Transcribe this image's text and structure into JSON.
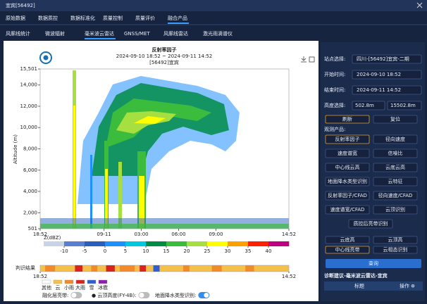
{
  "window": {
    "title": "宜宾[56492]"
  },
  "tabs": [
    {
      "label": "原始数据",
      "active": false
    },
    {
      "label": "数据质控",
      "active": false
    },
    {
      "label": "数据标准化",
      "active": false
    },
    {
      "label": "质量控制",
      "active": false
    },
    {
      "label": "质量评价",
      "active": false
    },
    {
      "label": "融合产品",
      "active": true
    }
  ],
  "subtabs": [
    {
      "label": "风廓线统计",
      "active": false
    },
    {
      "label": "微波辐射",
      "active": false
    },
    {
      "label": "毫米波云雷达",
      "active": true
    },
    {
      "label": "GNSS/MET",
      "active": false
    },
    {
      "label": "风廓线雷达",
      "active": false
    },
    {
      "label": "激光雨滴谱仪",
      "active": false
    }
  ],
  "chart_data": {
    "type": "heatmap",
    "title": "反射率因子",
    "subtitle": "2024-09-10 18:52 ~ 2024-09-11 14:52",
    "station": "[56492]宜宾",
    "y_label": "Altitude (m)",
    "xlim": [
      0,
      20
    ],
    "xticks": [
      {
        "value": 0,
        "label": "18:52"
      },
      {
        "value": 5.133,
        "label": "09-11"
      },
      {
        "value": 8.133,
        "label": "03:00"
      },
      {
        "value": 11.133,
        "label": "06:00"
      },
      {
        "value": 14.133,
        "label": "09:00"
      },
      {
        "value": 20,
        "label": "14:52"
      }
    ],
    "ylim": [
      501,
      15501
    ],
    "yticks": [
      501,
      {
        "value": 2000,
        "label": "2,000"
      },
      {
        "value": 4000,
        "label": "4,000"
      },
      {
        "value": 6000,
        "label": "6,000"
      },
      {
        "value": 8000,
        "label": "8,000"
      },
      {
        "value": 10000,
        "label": "10,000"
      },
      {
        "value": 12000,
        "label": "12,000"
      },
      {
        "value": 14000,
        "label": "14,000"
      },
      {
        "value": 15501,
        "label": "15,501"
      }
    ],
    "colorbar": {
      "label": "Z(dBZ)",
      "lim": [
        -15,
        45
      ],
      "ticks": [
        -10,
        -5,
        0,
        5,
        10,
        15,
        20,
        25,
        30,
        35,
        40
      ],
      "colors": [
        "#c8d4e6",
        "#5b7fd0",
        "#2a5fc0",
        "#1e90ff",
        "#00c8e0",
        "#008c46",
        "#3cbc3c",
        "#a6e040",
        "#ffff00",
        "#ffa000",
        "#ff2000",
        "#c00080"
      ]
    },
    "classification": {
      "label": "判识结果",
      "xticks": [
        {
          "value": 0,
          "label": "18:52"
        },
        {
          "value": 20,
          "label": "14:52"
        }
      ],
      "categories": [
        "其他",
        "云",
        "小雨",
        "大雨",
        "雪",
        "冰雹"
      ],
      "colors": [
        "#ffffff",
        "#f5c04a",
        "#f08a2a",
        "#d9231f",
        "#2f5fd0",
        "#8a1fb0"
      ]
    }
  },
  "toggles": [
    {
      "label": "融化层亮带:",
      "on": false
    },
    {
      "label": "● 云顶高度(FY-4B):",
      "on": false
    },
    {
      "label": "地面降水类型识别:",
      "on": true
    }
  ],
  "panel": {
    "station_label": "站点选择:",
    "station": "四川-[56492]宜宾-二期",
    "start_label": "开始时间:",
    "start": "2024-09-10 18:52",
    "end_label": "结束时间:",
    "end": "2024-09-11 14:52",
    "height_label": "高度选择:",
    "height_min": "502.8m",
    "height_max": "15502.8m",
    "actions": [
      {
        "label": "刷新",
        "selected": true
      },
      {
        "label": "复位",
        "selected": false
      }
    ],
    "products_label": "观测产品:",
    "products": [
      {
        "label": "反射率因子",
        "selected": true
      },
      {
        "label": "径向速度",
        "selected": false
      },
      {
        "label": "速度谱宽",
        "selected": false
      },
      {
        "label": "信噪比",
        "selected": false
      },
      {
        "label": "中心线云高",
        "selected": false
      },
      {
        "label": "云底云高",
        "selected": false
      },
      {
        "label": "地面降水类型识别",
        "selected": false
      },
      {
        "label": "云特征",
        "selected": false
      },
      {
        "label": "反射率因子/CFAD",
        "selected": false
      },
      {
        "label": "径向速度/CFAD",
        "selected": false
      },
      {
        "label": "速度谱宽/CFAD",
        "selected": false
      },
      {
        "label": "云顶识别",
        "selected": false
      },
      {
        "label": "质控后亮带识别",
        "selected": false
      }
    ],
    "extra": [
      {
        "label": "云底高",
        "selected": false
      },
      {
        "label": "云顶高",
        "selected": false
      },
      {
        "label": "中心线亮带",
        "selected": true
      },
      {
        "label": "云相态识别",
        "selected": false
      }
    ],
    "query": "查询",
    "advice": "诊断建议-毫米波云雷达-宜宾",
    "col_title": "标题",
    "col_action": "操作 ⊕"
  }
}
